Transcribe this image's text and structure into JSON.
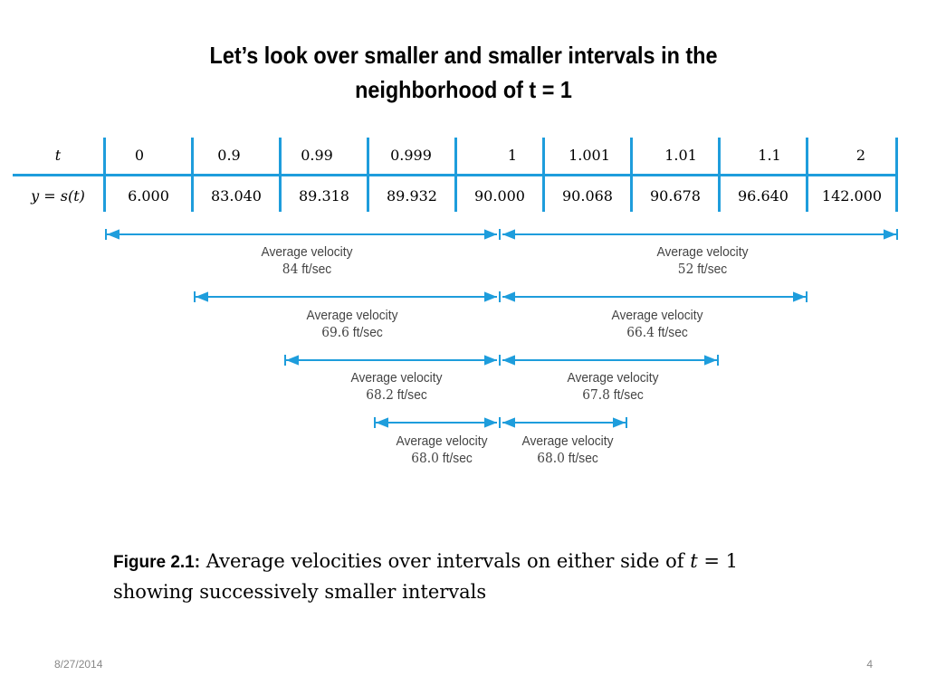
{
  "title": {
    "line1": "Let’s look over smaller and smaller intervals in the",
    "line2": "neighborhood of  t = 1"
  },
  "table": {
    "t_label": "t",
    "y_label": "y = s(t)",
    "t_values": [
      "0",
      "0.9",
      "0.99",
      "0.999",
      "1",
      "1.001",
      "1.01",
      "1.1",
      "2"
    ],
    "y_values": [
      "6.000",
      "83.040",
      "89.318",
      "89.932",
      "90.000",
      "90.068",
      "90.678",
      "96.640",
      "142.000"
    ]
  },
  "intervals": {
    "heading": "Average velocity",
    "unit": "ft/sec",
    "pairs": [
      {
        "left_value": "84",
        "right_value": "52"
      },
      {
        "left_value": "69.6",
        "right_value": "66.4"
      },
      {
        "left_value": "68.2",
        "right_value": "67.8"
      },
      {
        "left_value": "68.0",
        "right_value": "68.0"
      }
    ]
  },
  "caption": {
    "figure_label": "Figure 2.1:",
    "text_before_t": "Average velocities over intervals on either side of",
    "t_symbol": "t",
    "text_after_t": "= 1",
    "line2": "showing successively smaller intervals"
  },
  "footer": {
    "date": "8/27/2014",
    "page": "4"
  },
  "colors": {
    "accent": "#1e9ddc",
    "text": "#000000",
    "velocity_text": "#444444",
    "footer": "#888888"
  }
}
